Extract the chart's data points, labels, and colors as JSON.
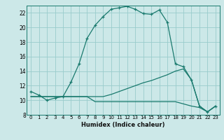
{
  "xlabel": "Humidex (Indice chaleur)",
  "bg_color": "#cce8e8",
  "grid_color": "#99cccc",
  "line_color": "#1a7a6e",
  "x_main": [
    0,
    1,
    2,
    3,
    4,
    5,
    6,
    7,
    8,
    9,
    10,
    11,
    12,
    13,
    14,
    15,
    16,
    17,
    18,
    19,
    20,
    21,
    22,
    23
  ],
  "y_main": [
    11.2,
    10.7,
    10.0,
    10.3,
    10.5,
    12.5,
    15.0,
    18.5,
    20.3,
    21.5,
    22.5,
    22.7,
    22.9,
    22.5,
    21.9,
    21.8,
    22.4,
    20.7,
    15.0,
    14.6,
    12.8,
    9.2,
    8.4,
    9.2
  ],
  "x_line2": [
    0,
    1,
    2,
    3,
    4,
    5,
    6,
    7,
    8,
    9,
    10,
    11,
    12,
    13,
    14,
    15,
    16,
    17,
    18,
    19,
    20,
    21,
    22,
    23
  ],
  "y_line2": [
    10.5,
    10.5,
    10.5,
    10.5,
    10.5,
    10.5,
    10.5,
    10.5,
    10.5,
    10.5,
    10.8,
    11.2,
    11.6,
    12.0,
    12.4,
    12.7,
    13.1,
    13.5,
    14.0,
    14.3,
    12.8,
    9.2,
    8.4,
    9.2
  ],
  "x_line3": [
    0,
    1,
    2,
    3,
    4,
    5,
    6,
    7,
    8,
    9,
    10,
    11,
    12,
    13,
    14,
    15,
    16,
    17,
    18,
    19,
    20,
    21,
    22,
    23
  ],
  "y_line3": [
    10.5,
    10.5,
    10.5,
    10.5,
    10.5,
    10.5,
    10.5,
    10.5,
    9.8,
    9.8,
    9.8,
    9.8,
    9.8,
    9.8,
    9.8,
    9.8,
    9.8,
    9.8,
    9.8,
    9.5,
    9.2,
    9.0,
    8.4,
    9.2
  ],
  "xlim": [
    -0.5,
    23.5
  ],
  "ylim": [
    8,
    23
  ],
  "yticks": [
    8,
    10,
    12,
    14,
    16,
    18,
    20,
    22
  ],
  "xticks": [
    0,
    1,
    2,
    3,
    4,
    5,
    6,
    7,
    8,
    9,
    10,
    11,
    12,
    13,
    14,
    15,
    16,
    17,
    18,
    19,
    20,
    21,
    22,
    23
  ],
  "xtick_labels": [
    "0",
    "1",
    "2",
    "3",
    "4",
    "5",
    "6",
    "7",
    "8",
    "9",
    "10",
    "11",
    "12",
    "13",
    "14",
    "15",
    "16",
    "17",
    "18",
    "19",
    "20",
    "21",
    "22",
    "23"
  ]
}
